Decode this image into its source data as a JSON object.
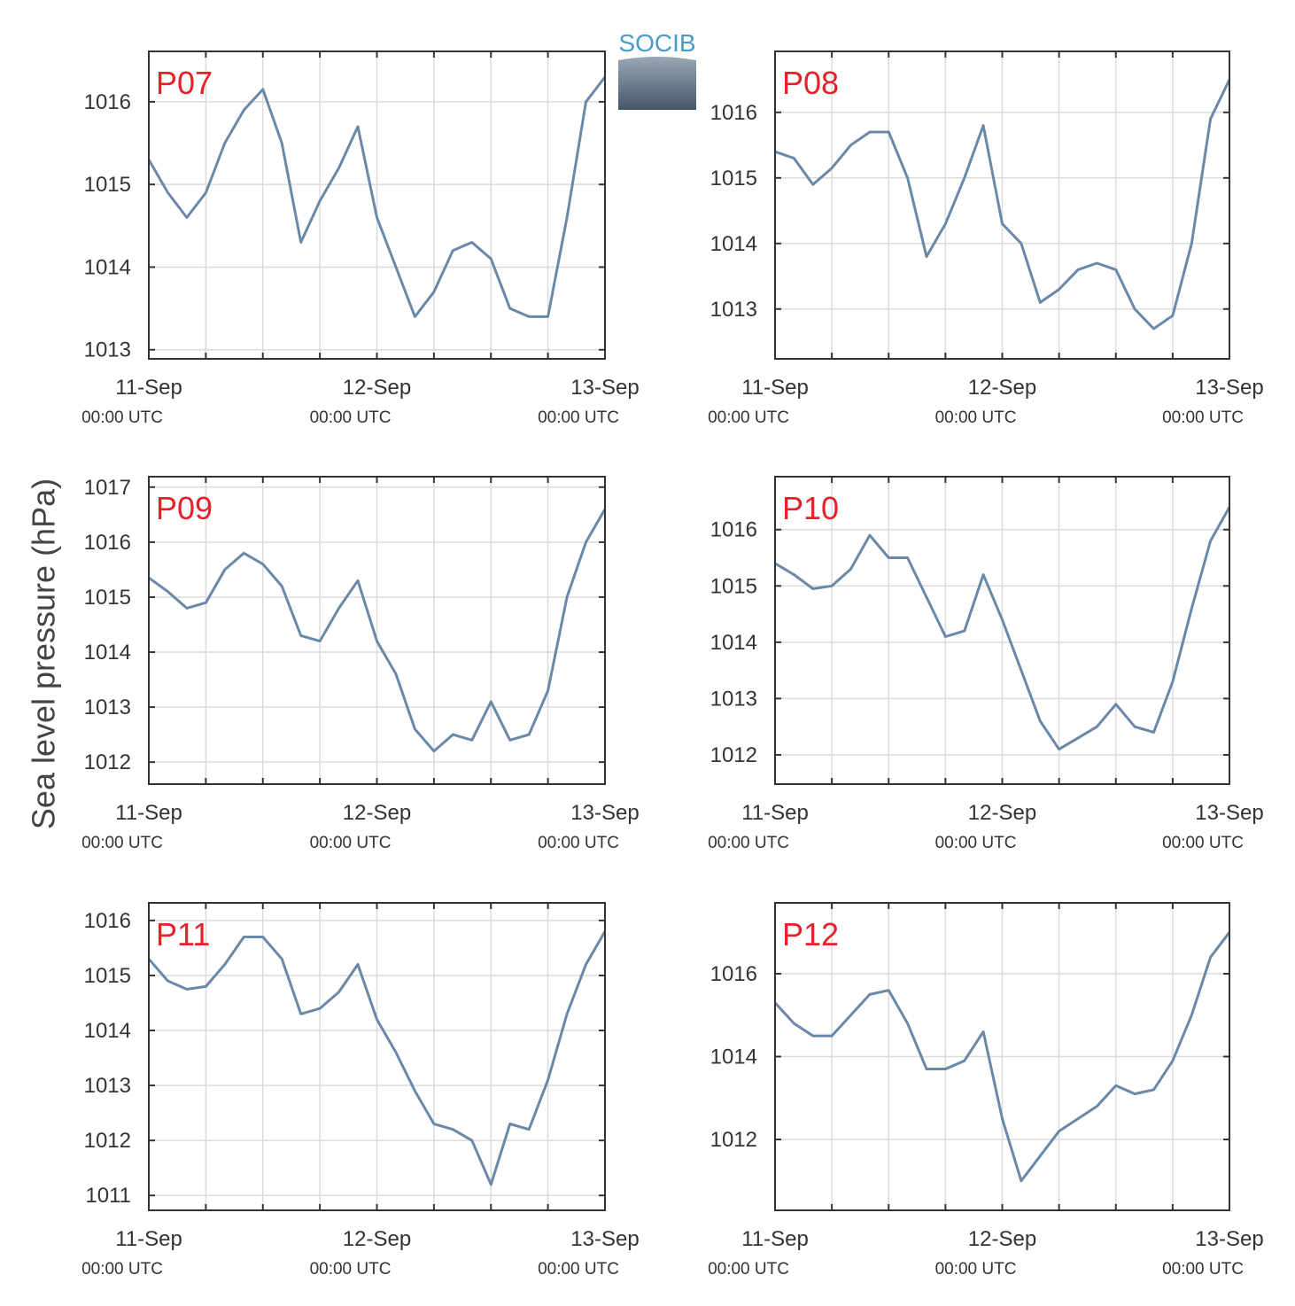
{
  "ylabel": "Sea level pressure (hPa)",
  "logo": "SOCIB",
  "chart_data": [
    {
      "type": "line",
      "title": "P07",
      "x": [
        "11-Sep 00:00",
        "11-Sep 02:00",
        "11-Sep 04:00",
        "11-Sep 06:00",
        "11-Sep 08:00",
        "11-Sep 10:00",
        "11-Sep 12:00",
        "11-Sep 14:00",
        "11-Sep 16:00",
        "11-Sep 18:00",
        "11-Sep 20:00",
        "11-Sep 22:00",
        "12-Sep 00:00",
        "12-Sep 02:00",
        "12-Sep 04:00",
        "12-Sep 06:00",
        "12-Sep 08:00",
        "12-Sep 10:00",
        "12-Sep 12:00",
        "12-Sep 14:00",
        "12-Sep 16:00",
        "12-Sep 18:00",
        "12-Sep 20:00",
        "12-Sep 22:00",
        "13-Sep 00:00"
      ],
      "series": [
        {
          "color": "#6a88a8",
          "values": [
            1015.3,
            1014.9,
            1014.6,
            1014.9,
            1015.5,
            1015.9,
            1016.15,
            1015.5,
            1014.3,
            1014.8,
            1015.2,
            1015.7,
            1014.6,
            1014.0,
            1013.4,
            1013.7,
            1014.2,
            1014.3,
            1014.1,
            1013.5,
            1013.4,
            1013.4,
            1014.6,
            1016.0,
            1016.3
          ]
        }
      ],
      "xlim": [
        "11-Sep 00:00",
        "13-Sep 00:00"
      ],
      "xticks": [
        {
          "value": "11-Sep 00:00",
          "label": "11-Sep",
          "sublabel": "00:00 UTC"
        },
        "11-Sep 06:00",
        "11-Sep 12:00",
        "11-Sep 18:00",
        {
          "value": "12-Sep 00:00",
          "label": "12-Sep",
          "sublabel": "00:00 UTC"
        },
        "12-Sep 06:00",
        "12-Sep 12:00",
        "12-Sep 18:00",
        {
          "value": "13-Sep 00:00",
          "label": "13-Sep",
          "sublabel": "00:00 UTC"
        }
      ],
      "ylim": [
        1012.89,
        1016.61
      ],
      "yticks": [
        1013,
        1014,
        1015,
        1016
      ],
      "grid": true
    },
    {
      "type": "line",
      "title": "P08",
      "x": [
        "11-Sep 00:00",
        "11-Sep 02:00",
        "11-Sep 04:00",
        "11-Sep 06:00",
        "11-Sep 08:00",
        "11-Sep 10:00",
        "11-Sep 12:00",
        "11-Sep 14:00",
        "11-Sep 16:00",
        "11-Sep 18:00",
        "11-Sep 20:00",
        "11-Sep 22:00",
        "12-Sep 00:00",
        "12-Sep 02:00",
        "12-Sep 04:00",
        "12-Sep 06:00",
        "12-Sep 08:00",
        "12-Sep 10:00",
        "12-Sep 12:00",
        "12-Sep 14:00",
        "12-Sep 16:00",
        "12-Sep 18:00",
        "12-Sep 20:00",
        "12-Sep 22:00",
        "13-Sep 00:00"
      ],
      "series": [
        {
          "color": "#6a88a8",
          "values": [
            1015.4,
            1015.3,
            1014.9,
            1015.15,
            1015.5,
            1015.7,
            1015.7,
            1015.0,
            1013.8,
            1014.3,
            1015.0,
            1015.8,
            1014.3,
            1014.0,
            1013.1,
            1013.3,
            1013.6,
            1013.7,
            1013.6,
            1013.0,
            1012.7,
            1012.9,
            1014.0,
            1015.9,
            1016.5
          ]
        }
      ],
      "xlim": [
        "11-Sep 00:00",
        "13-Sep 00:00"
      ],
      "xticks": [
        {
          "value": "11-Sep 00:00",
          "label": "11-Sep",
          "sublabel": "00:00 UTC"
        },
        "11-Sep 06:00",
        "11-Sep 12:00",
        "11-Sep 18:00",
        {
          "value": "12-Sep 00:00",
          "label": "12-Sep",
          "sublabel": "00:00 UTC"
        },
        "12-Sep 06:00",
        "12-Sep 12:00",
        "12-Sep 18:00",
        {
          "value": "13-Sep 00:00",
          "label": "13-Sep",
          "sublabel": "00:00 UTC"
        }
      ],
      "ylim": [
        1012.24,
        1016.93
      ],
      "yticks": [
        1013,
        1014,
        1015,
        1016
      ],
      "grid": true
    },
    {
      "type": "line",
      "title": "P09",
      "x": [
        "11-Sep 00:00",
        "11-Sep 02:00",
        "11-Sep 04:00",
        "11-Sep 06:00",
        "11-Sep 08:00",
        "11-Sep 10:00",
        "11-Sep 12:00",
        "11-Sep 14:00",
        "11-Sep 16:00",
        "11-Sep 18:00",
        "11-Sep 20:00",
        "11-Sep 22:00",
        "12-Sep 00:00",
        "12-Sep 02:00",
        "12-Sep 04:00",
        "12-Sep 06:00",
        "12-Sep 08:00",
        "12-Sep 10:00",
        "12-Sep 12:00",
        "12-Sep 14:00",
        "12-Sep 16:00",
        "12-Sep 18:00",
        "12-Sep 20:00",
        "12-Sep 22:00",
        "13-Sep 00:00"
      ],
      "series": [
        {
          "color": "#6a88a8",
          "values": [
            1015.35,
            1015.1,
            1014.8,
            1014.9,
            1015.5,
            1015.8,
            1015.6,
            1015.2,
            1014.3,
            1014.2,
            1014.8,
            1015.3,
            1014.2,
            1013.6,
            1012.6,
            1012.2,
            1012.5,
            1012.4,
            1013.1,
            1012.4,
            1012.5,
            1013.3,
            1015.0,
            1016.0,
            1016.6
          ]
        }
      ],
      "xlim": [
        "11-Sep 00:00",
        "13-Sep 00:00"
      ],
      "xticks": [
        {
          "value": "11-Sep 00:00",
          "label": "11-Sep",
          "sublabel": "00:00 UTC"
        },
        "11-Sep 06:00",
        "11-Sep 12:00",
        "11-Sep 18:00",
        {
          "value": "12-Sep 00:00",
          "label": "12-Sep",
          "sublabel": "00:00 UTC"
        },
        "12-Sep 06:00",
        "12-Sep 12:00",
        "12-Sep 18:00",
        {
          "value": "13-Sep 00:00",
          "label": "13-Sep",
          "sublabel": "00:00 UTC"
        }
      ],
      "ylim": [
        1011.6,
        1017.19
      ],
      "yticks": [
        1012,
        1013,
        1014,
        1015,
        1016,
        1017
      ],
      "grid": true
    },
    {
      "type": "line",
      "title": "P10",
      "x": [
        "11-Sep 00:00",
        "11-Sep 02:00",
        "11-Sep 04:00",
        "11-Sep 06:00",
        "11-Sep 08:00",
        "11-Sep 10:00",
        "11-Sep 12:00",
        "11-Sep 14:00",
        "11-Sep 16:00",
        "11-Sep 18:00",
        "11-Sep 20:00",
        "11-Sep 22:00",
        "12-Sep 00:00",
        "12-Sep 02:00",
        "12-Sep 04:00",
        "12-Sep 06:00",
        "12-Sep 08:00",
        "12-Sep 10:00",
        "12-Sep 12:00",
        "12-Sep 14:00",
        "12-Sep 16:00",
        "12-Sep 18:00",
        "12-Sep 20:00",
        "12-Sep 22:00",
        "13-Sep 00:00"
      ],
      "series": [
        {
          "color": "#6a88a8",
          "values": [
            1015.4,
            1015.2,
            1014.95,
            1015.0,
            1015.3,
            1015.9,
            1015.5,
            1015.5,
            1014.8,
            1014.1,
            1014.2,
            1015.2,
            1014.4,
            1013.5,
            1012.6,
            1012.1,
            1012.3,
            1012.5,
            1012.9,
            1012.5,
            1012.4,
            1013.3,
            1014.6,
            1015.8,
            1016.4
          ]
        }
      ],
      "xlim": [
        "11-Sep 00:00",
        "13-Sep 00:00"
      ],
      "xticks": [
        {
          "value": "11-Sep 00:00",
          "label": "11-Sep",
          "sublabel": "00:00 UTC"
        },
        "11-Sep 06:00",
        "11-Sep 12:00",
        "11-Sep 18:00",
        {
          "value": "12-Sep 00:00",
          "label": "12-Sep",
          "sublabel": "00:00 UTC"
        },
        "12-Sep 06:00",
        "12-Sep 12:00",
        "12-Sep 18:00",
        {
          "value": "13-Sep 00:00",
          "label": "13-Sep",
          "sublabel": "00:00 UTC"
        }
      ],
      "ylim": [
        1011.48,
        1016.94
      ],
      "yticks": [
        1012,
        1013,
        1014,
        1015,
        1016
      ],
      "grid": true
    },
    {
      "type": "line",
      "title": "P11",
      "x": [
        "11-Sep 00:00",
        "11-Sep 02:00",
        "11-Sep 04:00",
        "11-Sep 06:00",
        "11-Sep 08:00",
        "11-Sep 10:00",
        "11-Sep 12:00",
        "11-Sep 14:00",
        "11-Sep 16:00",
        "11-Sep 18:00",
        "11-Sep 20:00",
        "11-Sep 22:00",
        "12-Sep 00:00",
        "12-Sep 02:00",
        "12-Sep 04:00",
        "12-Sep 06:00",
        "12-Sep 08:00",
        "12-Sep 10:00",
        "12-Sep 12:00",
        "12-Sep 14:00",
        "12-Sep 16:00",
        "12-Sep 18:00",
        "12-Sep 20:00",
        "12-Sep 22:00",
        "13-Sep 00:00"
      ],
      "series": [
        {
          "color": "#6a88a8",
          "values": [
            1015.3,
            1014.9,
            1014.75,
            1014.8,
            1015.2,
            1015.7,
            1015.7,
            1015.3,
            1014.3,
            1014.4,
            1014.7,
            1015.2,
            1014.2,
            1013.6,
            1012.9,
            1012.3,
            1012.2,
            1012.0,
            1011.2,
            1012.3,
            1012.2,
            1013.1,
            1014.3,
            1015.2,
            1015.8
          ]
        }
      ],
      "xlim": [
        "11-Sep 00:00",
        "13-Sep 00:00"
      ],
      "xticks": [
        {
          "value": "11-Sep 00:00",
          "label": "11-Sep",
          "sublabel": "00:00 UTC"
        },
        "11-Sep 06:00",
        "11-Sep 12:00",
        "11-Sep 18:00",
        {
          "value": "12-Sep 00:00",
          "label": "12-Sep",
          "sublabel": "00:00 UTC"
        },
        "12-Sep 06:00",
        "12-Sep 12:00",
        "12-Sep 18:00",
        {
          "value": "13-Sep 00:00",
          "label": "13-Sep",
          "sublabel": "00:00 UTC"
        }
      ],
      "ylim": [
        1010.73,
        1016.32
      ],
      "yticks": [
        1011,
        1012,
        1013,
        1014,
        1015,
        1016
      ],
      "grid": true
    },
    {
      "type": "line",
      "title": "P12",
      "x": [
        "11-Sep 00:00",
        "11-Sep 02:00",
        "11-Sep 04:00",
        "11-Sep 06:00",
        "11-Sep 08:00",
        "11-Sep 10:00",
        "11-Sep 12:00",
        "11-Sep 14:00",
        "11-Sep 16:00",
        "11-Sep 18:00",
        "11-Sep 20:00",
        "11-Sep 22:00",
        "12-Sep 00:00",
        "12-Sep 02:00",
        "12-Sep 04:00",
        "12-Sep 06:00",
        "12-Sep 08:00",
        "12-Sep 10:00",
        "12-Sep 12:00",
        "12-Sep 14:00",
        "12-Sep 16:00",
        "12-Sep 18:00",
        "12-Sep 20:00",
        "12-Sep 22:00",
        "13-Sep 00:00"
      ],
      "series": [
        {
          "color": "#6a88a8",
          "values": [
            1015.3,
            1014.8,
            1014.5,
            1014.5,
            1015.0,
            1015.5,
            1015.6,
            1014.8,
            1013.7,
            1013.7,
            1013.9,
            1014.6,
            1012.5,
            1011.0,
            1011.6,
            1012.2,
            1012.5,
            1012.8,
            1013.3,
            1013.1,
            1013.2,
            1013.9,
            1015.0,
            1016.4,
            1017.0
          ]
        }
      ],
      "xlim": [
        "11-Sep 00:00",
        "13-Sep 00:00"
      ],
      "xticks": [
        {
          "value": "11-Sep 00:00",
          "label": "11-Sep",
          "sublabel": "00:00 UTC"
        },
        "11-Sep 06:00",
        "11-Sep 12:00",
        "11-Sep 18:00",
        {
          "value": "12-Sep 00:00",
          "label": "12-Sep",
          "sublabel": "00:00 UTC"
        },
        "12-Sep 06:00",
        "12-Sep 12:00",
        "12-Sep 18:00",
        {
          "value": "13-Sep 00:00",
          "label": "13-Sep",
          "sublabel": "00:00 UTC"
        }
      ],
      "ylim": [
        1010.29,
        1017.71
      ],
      "yticks": [
        1012,
        1014,
        1016
      ],
      "grid": true
    }
  ]
}
